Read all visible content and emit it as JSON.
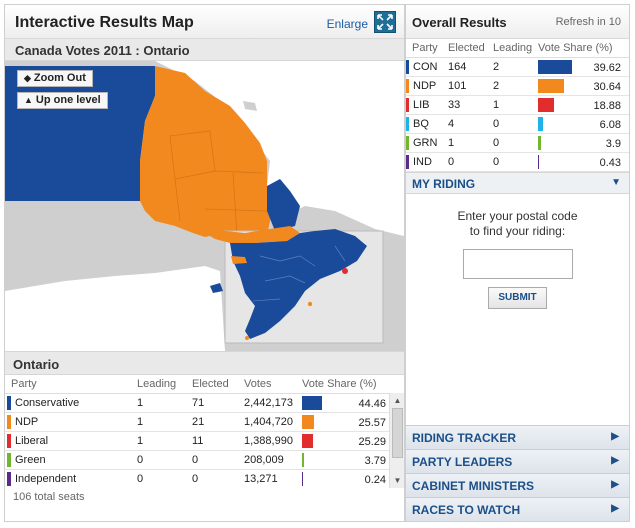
{
  "header": {
    "title": "Interactive Results Map",
    "enlarge_label": "Enlarge"
  },
  "map": {
    "breadcrumb": "Canada Votes 2011 : Ontario",
    "zoom_out_label": "Zoom Out",
    "up_level_label": "Up one level"
  },
  "province": {
    "title": "Ontario",
    "columns": [
      "Party",
      "Leading",
      "Elected",
      "Votes",
      "Vote Share (%)"
    ],
    "rows": [
      {
        "party": "Conservative",
        "leading": "1",
        "elected": "71",
        "votes": "2,442,173",
        "share": "44.46",
        "share_value": 44.46,
        "color": "#1a4a9a"
      },
      {
        "party": "NDP",
        "leading": "1",
        "elected": "21",
        "votes": "1,404,720",
        "share": "25.57",
        "share_value": 25.57,
        "color": "#f2891f"
      },
      {
        "party": "Liberal",
        "leading": "1",
        "elected": "11",
        "votes": "1,388,990",
        "share": "25.29",
        "share_value": 25.29,
        "color": "#e12d2d"
      },
      {
        "party": "Green",
        "leading": "0",
        "elected": "0",
        "votes": "208,009",
        "share": "3.79",
        "share_value": 3.79,
        "color": "#72b62d"
      },
      {
        "party": "Independent",
        "leading": "0",
        "elected": "0",
        "votes": "13,271",
        "share": "0.24",
        "share_value": 0.24,
        "color": "#5a2d8a"
      }
    ],
    "total_seats": "106 total seats"
  },
  "overall": {
    "title": "Overall Results",
    "refresh": "Refresh in 10",
    "columns": [
      "Party",
      "Elected",
      "Leading",
      "Vote Share (%)"
    ],
    "rows": [
      {
        "party": "CON",
        "elected": "164",
        "leading": "2",
        "share": "39.62",
        "share_value": 39.62,
        "color": "#1a4a9a"
      },
      {
        "party": "NDP",
        "elected": "101",
        "leading": "2",
        "share": "30.64",
        "share_value": 30.64,
        "color": "#f2891f"
      },
      {
        "party": "LIB",
        "elected": "33",
        "leading": "1",
        "share": "18.88",
        "share_value": 18.88,
        "color": "#e12d2d"
      },
      {
        "party": "BQ",
        "elected": "4",
        "leading": "0",
        "share": "6.08",
        "share_value": 6.08,
        "color": "#1fb3e6"
      },
      {
        "party": "GRN",
        "elected": "1",
        "leading": "0",
        "share": "3.9",
        "share_value": 3.9,
        "color": "#72b62d"
      },
      {
        "party": "IND",
        "elected": "0",
        "leading": "0",
        "share": "0.43",
        "share_value": 0.43,
        "color": "#5a2d8a"
      }
    ]
  },
  "my_riding": {
    "title": "MY RIDING",
    "prompt_line1": "Enter your postal code",
    "prompt_line2": "to find your riding:",
    "input_value": "",
    "submit_label": "SUBMIT"
  },
  "accordion": [
    "RIDING TRACKER",
    "PARTY LEADERS",
    "CABINET MINISTERS",
    "RACES TO WATCH"
  ],
  "colors": {
    "map_background": "#cfcfcf",
    "con": "#1a4a9a",
    "ndp": "#f2891f"
  }
}
